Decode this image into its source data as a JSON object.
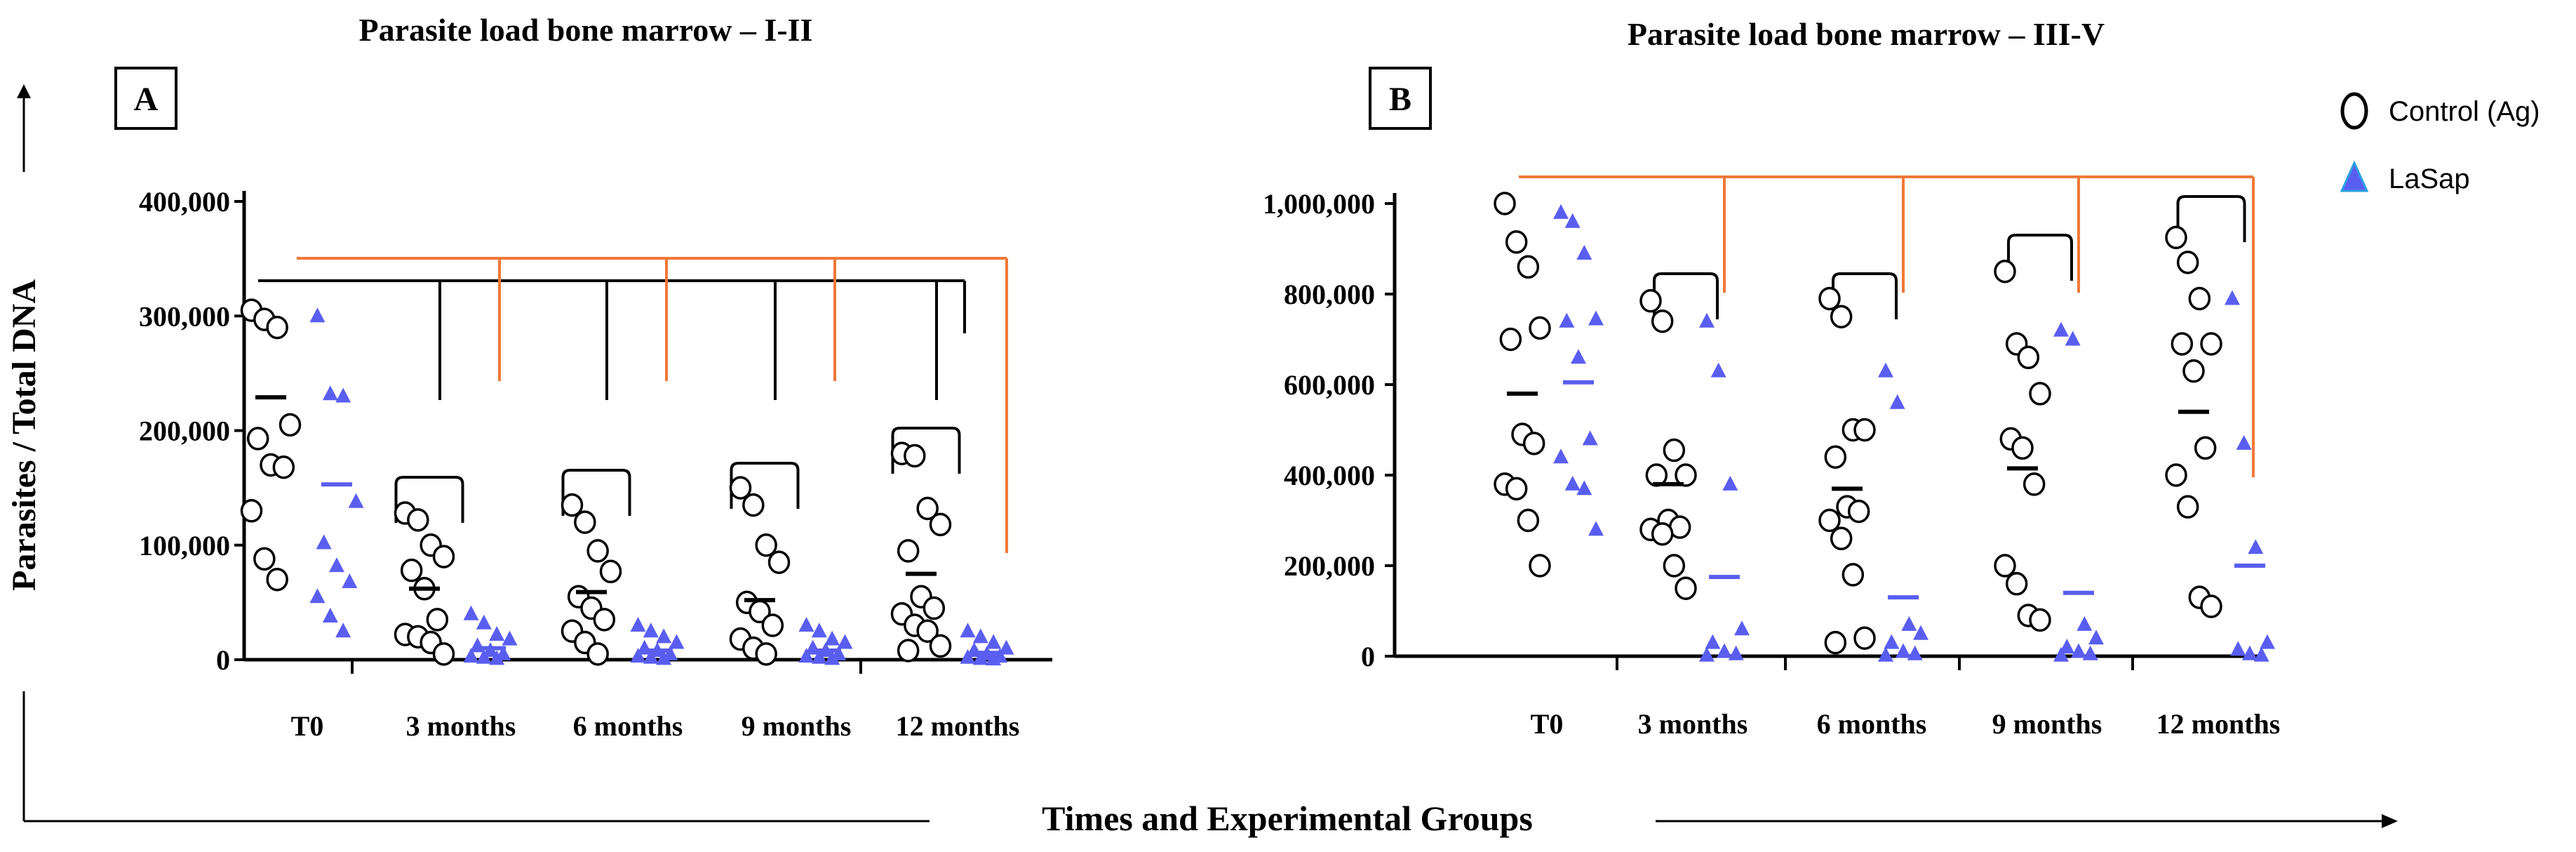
{
  "figure": {
    "y_axis_label": "Parasites / Total DNA",
    "x_axis_label": "Times and Experimental Groups"
  },
  "legend": {
    "items": [
      {
        "label": "Control (Ag)",
        "marker": "open-circle"
      },
      {
        "label": "LaSap",
        "marker": "filled-triangle"
      }
    ]
  },
  "colors": {
    "control": "#000000",
    "lasap": "#5a5ef0",
    "significance": "#f07838",
    "axis": "#000000"
  },
  "chart_data": [
    {
      "type": "scatter",
      "panel_label": "A",
      "title": "Parasite load bone marrow – I-II",
      "categories": [
        "T0",
        "3 months",
        "6 months",
        "9 months",
        "12 months"
      ],
      "ylim": [
        0,
        400000
      ],
      "yticks": [
        0,
        100000,
        200000,
        300000,
        400000
      ],
      "ytick_labels": [
        "0",
        "100,000",
        "200,000",
        "300,000",
        "400,000"
      ],
      "series": [
        {
          "name": "Control (Ag)",
          "means": [
            229000,
            62000,
            59000,
            52000,
            75000
          ],
          "points": [
            [
              305000,
              297000,
              290000,
              205000,
              193000,
              170000,
              168000,
              130000,
              88000,
              70000
            ],
            [
              128000,
              122000,
              100000,
              90000,
              78000,
              62000,
              35000,
              22000,
              20000,
              15000,
              5000
            ],
            [
              135000,
              120000,
              95000,
              77000,
              55000,
              45000,
              35000,
              25000,
              15000,
              5000
            ],
            [
              150000,
              135000,
              100000,
              85000,
              50000,
              42000,
              30000,
              18000,
              10000,
              5000
            ],
            [
              180000,
              178000,
              132000,
              118000,
              95000,
              55000,
              45000,
              40000,
              30000,
              25000,
              12000,
              8000
            ]
          ]
        },
        {
          "name": "LaSap",
          "means": [
            153000,
            10000,
            8000,
            8000,
            6000
          ],
          "points": [
            [
              300000,
              232000,
              230000,
              138000,
              102000,
              82000,
              68000,
              55000,
              38000,
              25000
            ],
            [
              40000,
              32000,
              22000,
              18000,
              12000,
              8000,
              5000,
              3000,
              2000,
              1000
            ],
            [
              30000,
              25000,
              20000,
              15000,
              10000,
              8000,
              5000,
              3000,
              2000,
              1000
            ],
            [
              30000,
              25000,
              18000,
              15000,
              10000,
              8000,
              5000,
              3000,
              2000,
              1000
            ],
            [
              25000,
              20000,
              15000,
              10000,
              8000,
              5000,
              3000,
              2000,
              1000,
              500
            ]
          ]
        }
      ],
      "significance": {
        "control_brackets": [
          1,
          2,
          3,
          4
        ],
        "lasap_brackets": [
          1,
          2,
          3,
          4
        ],
        "lasap_last_extends_down": true
      }
    },
    {
      "type": "scatter",
      "panel_label": "B",
      "title": "Parasite load bone marrow – III-V",
      "categories": [
        "T0",
        "3 months",
        "6 months",
        "9 months",
        "12 months"
      ],
      "ylim": [
        0,
        1000000
      ],
      "yticks": [
        0,
        200000,
        400000,
        600000,
        800000,
        1000000
      ],
      "ytick_labels": [
        "0",
        "200,000",
        "400,000",
        "600,000",
        "800,000",
        "1,000,000"
      ],
      "series": [
        {
          "name": "Control (Ag)",
          "means": [
            580000,
            380000,
            370000,
            415000,
            540000
          ],
          "points": [
            [
              1000000,
              915000,
              860000,
              725000,
              700000,
              490000,
              470000,
              380000,
              370000,
              300000,
              200000
            ],
            [
              785000,
              740000,
              455000,
              400000,
              400000,
              300000,
              285000,
              280000,
              270000,
              200000,
              150000
            ],
            [
              790000,
              750000,
              500000,
              500000,
              440000,
              330000,
              320000,
              300000,
              260000,
              180000,
              40000,
              30000
            ],
            [
              850000,
              690000,
              660000,
              580000,
              480000,
              460000,
              380000,
              200000,
              160000,
              90000,
              80000
            ],
            [
              925000,
              870000,
              790000,
              690000,
              690000,
              630000,
              460000,
              400000,
              330000,
              130000,
              110000
            ]
          ]
        },
        {
          "name": "LaSap",
          "means": [
            605000,
            175000,
            130000,
            140000,
            200000
          ],
          "points": [
            [
              980000,
              960000,
              890000,
              745000,
              740000,
              660000,
              480000,
              440000,
              380000,
              370000,
              280000
            ],
            [
              740000,
              630000,
              380000,
              60000,
              30000,
              10000,
              5000,
              2000
            ],
            [
              630000,
              560000,
              70000,
              50000,
              30000,
              10000,
              5000,
              2000
            ],
            [
              720000,
              700000,
              70000,
              40000,
              20000,
              10000,
              5000,
              2000
            ],
            [
              790000,
              470000,
              240000,
              30000,
              15000,
              5000,
              2000
            ]
          ]
        }
      ],
      "significance": {
        "control_brackets": [
          1,
          2,
          3,
          4
        ],
        "lasap_brackets": [
          1,
          2,
          3,
          4
        ],
        "lasap_last_extends_down": true
      }
    }
  ]
}
